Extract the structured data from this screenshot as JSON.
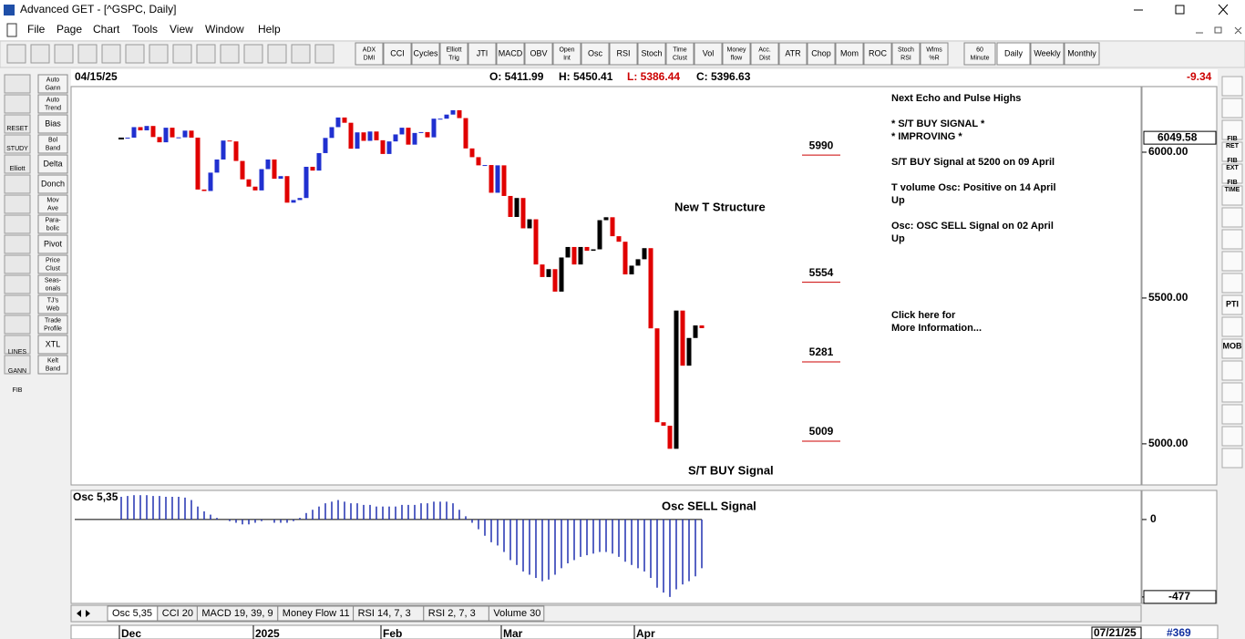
{
  "window": {
    "title": "Advanced GET - [^GSPC, Daily]"
  },
  "menu": [
    "File",
    "Page",
    "Chart",
    "Tools",
    "View",
    "Window",
    "Help"
  ],
  "toolbar": [
    [
      "ADX",
      "DMI"
    ],
    [
      "CCI"
    ],
    [
      "Cycles"
    ],
    [
      "Elliott",
      "Trig"
    ],
    [
      "JTI"
    ],
    [
      "MACD"
    ],
    [
      "OBV"
    ],
    [
      "Open",
      "Int"
    ],
    [
      "Osc"
    ],
    [
      "RSI"
    ],
    [
      "Stoch"
    ],
    [
      "Time",
      "Clust"
    ],
    [
      "Vol"
    ],
    [
      "Money",
      "flow"
    ],
    [
      "Acc.",
      "Dist"
    ],
    [
      "ATR"
    ],
    [
      "Chop"
    ],
    [
      "Mom"
    ],
    [
      "ROC"
    ],
    [
      "Stoch",
      "RSI"
    ],
    [
      "Wlms",
      "%R"
    ]
  ],
  "timeframes": [
    [
      "60",
      "Minute"
    ],
    [
      "Daily"
    ],
    [
      "Weekly"
    ],
    [
      "Monthly"
    ]
  ],
  "left_buttons": [
    [
      "Auto",
      "Gann"
    ],
    [
      "Auto",
      "Trend"
    ],
    [
      "Bias"
    ],
    [
      "Bol",
      "Band"
    ],
    [
      "Delta"
    ],
    [
      "Donch"
    ],
    [
      "Mov",
      "Ave"
    ],
    [
      "Para-",
      "bolic"
    ],
    [
      "Pivot"
    ],
    [
      "Price",
      "Clust"
    ],
    [
      "Seas-",
      "onals"
    ],
    [
      "TJ's",
      "Web"
    ],
    [
      "Trade",
      "Profile"
    ],
    [
      "XTL"
    ],
    [
      "Kelt",
      "Band"
    ]
  ],
  "left_icon_labels": [
    "RESET",
    "STUDY",
    "Elliott",
    "LINES",
    "GANN",
    "FIB"
  ],
  "right_icons": [
    [
      "FIB",
      "RET"
    ],
    [
      "FIB",
      "EXT"
    ],
    [
      "FIB",
      "TIME"
    ],
    [
      "PTI"
    ],
    [
      "MOB"
    ]
  ],
  "quote": {
    "date": "04/15/25",
    "open": "O: 5411.99",
    "high": "H: 5450.41",
    "low": "L: 5386.44",
    "close": "C: 5396.63",
    "change": "-9.34"
  },
  "price_chart": {
    "type": "candlestick",
    "ylim": [
      4859,
      6225
    ],
    "yticks": [
      {
        "value": 6000,
        "label": "6000.00"
      },
      {
        "value": 5500,
        "label": "5500.00"
      },
      {
        "value": 5000,
        "label": "5000.00"
      }
    ],
    "last_price": {
      "value": 6049.58,
      "label": "6049.58"
    },
    "levels": [
      5990,
      5554,
      5281,
      5009
    ],
    "closes": [
      6047,
      6050,
      6086,
      6075,
      6090,
      6052,
      6034,
      6084,
      6051,
      6051,
      6074,
      6050,
      5872,
      5867,
      5930,
      5975,
      6040,
      6037,
      5970,
      5907,
      5882,
      5869,
      5942,
      5975,
      5909,
      5918,
      5827,
      5836,
      5843,
      5950,
      5937,
      5997,
      6049,
      6086,
      6119,
      6101,
      6012,
      6068,
      6039,
      6071,
      6041,
      5994,
      6037,
      6061,
      6084,
      6026,
      6066,
      6069,
      6051,
      6115,
      6115,
      6129,
      6144,
      6117,
      6013,
      5983,
      5955,
      5956,
      5861,
      5955,
      5850,
      5778,
      5843,
      5739,
      5770,
      5615,
      5572,
      5599,
      5522,
      5639,
      5675,
      5615,
      5675,
      5662,
      5667,
      5767,
      5777,
      5712,
      5693,
      5581,
      5611,
      5633,
      5671,
      5396,
      5074,
      5062,
      4983,
      5457,
      5268,
      5363,
      5406,
      5396.63
    ],
    "annotations": [
      "New T Structure",
      "S/T BUY Signal"
    ]
  },
  "info_text": [
    "Next Echo and Pulse Highs",
    "* S/T BUY SIGNAL *",
    "* IMPROVING *",
    "S/T BUY Signal at 5200 on 09 April",
    "T volume Osc: Positive on 14 April",
    "Up",
    "Osc: OSC SELL Signal on 02 April",
    "Up",
    "Click here for",
    "More Information..."
  ],
  "osc_chart": {
    "type": "bar",
    "label": "Osc 5,35",
    "annotation": "Osc SELL Signal",
    "ylim": [
      -517,
      168
    ],
    "yticks": [
      0,
      -477
    ],
    "values": [
      140,
      145,
      150,
      150,
      150,
      145,
      145,
      140,
      140,
      140,
      135,
      120,
      80,
      50,
      30,
      10,
      0,
      -10,
      -20,
      -30,
      -30,
      -20,
      -10,
      0,
      -20,
      -20,
      -20,
      -10,
      10,
      40,
      60,
      80,
      100,
      110,
      120,
      110,
      100,
      100,
      90,
      90,
      80,
      80,
      80,
      80,
      90,
      90,
      90,
      100,
      100,
      110,
      110,
      110,
      100,
      60,
      20,
      -20,
      -60,
      -100,
      -140,
      -160,
      -200,
      -250,
      -280,
      -320,
      -340,
      -360,
      -380,
      -370,
      -340,
      -300,
      -270,
      -250,
      -230,
      -220,
      -210,
      -200,
      -200,
      -210,
      -230,
      -260,
      -280,
      -300,
      -320,
      -360,
      -420,
      -450,
      -477,
      -430,
      -400,
      -380,
      -350,
      -300
    ]
  },
  "tabs": [
    "Osc 5,35",
    "CCI 20",
    "MACD 19, 39, 9",
    "Money Flow 11",
    "RSI 14, 7, 3",
    "RSI 2, 7, 3",
    "Volume 30"
  ],
  "months": [
    "Dec",
    "2025",
    "Feb",
    "Mar",
    "Apr"
  ],
  "status": {
    "end_date": "07/21/25",
    "count": "#369"
  }
}
